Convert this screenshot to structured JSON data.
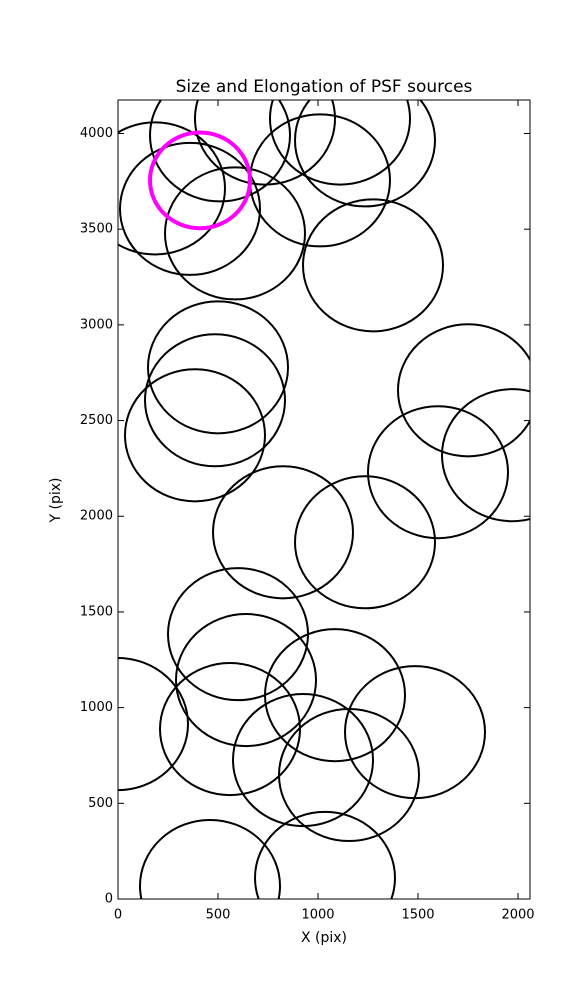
{
  "chart_data": {
    "type": "ellipse",
    "title": "Size and Elongation of PSF sources",
    "x_label": "X (pix)",
    "y_label": "Y (pix)",
    "xlim": [
      0,
      2060
    ],
    "ylim": [
      0,
      4175
    ],
    "xticks": [
      0,
      500,
      1000,
      1500,
      2000
    ],
    "yticks": [
      0,
      500,
      1000,
      1500,
      2000,
      2500,
      3000,
      3500,
      4000
    ],
    "series": [
      {
        "color": "#000000",
        "x": [
          185,
          360,
          585,
          510,
          735,
          1010,
          1235,
          1110,
          1275,
          500,
          485,
          385,
          1750,
          1600,
          1970,
          825,
          1235,
          600,
          640,
          1085,
          560,
          0,
          925,
          1485,
          1155,
          460,
          1035
        ],
        "y": [
          3713,
          3606,
          3478,
          3990,
          4078,
          3755,
          3964,
          4078,
          3311,
          2778,
          2606,
          2423,
          2658,
          2230,
          2319,
          1916,
          1864,
          1384,
          1144,
          1065,
          888,
          914,
          726,
          872,
          648,
          68,
          110
        ],
        "width": [
          700,
          700,
          700,
          700,
          700,
          700,
          700,
          700,
          700,
          700,
          700,
          700,
          700,
          700,
          700,
          700,
          700,
          700,
          700,
          700,
          700,
          700,
          700,
          700,
          700,
          700,
          700
        ],
        "height": [
          690,
          690,
          690,
          690,
          690,
          690,
          690,
          690,
          690,
          690,
          690,
          690,
          690,
          690,
          690,
          690,
          690,
          690,
          690,
          690,
          690,
          690,
          690,
          690,
          690,
          690,
          690
        ]
      },
      {
        "color": "#ff00ff",
        "x": [
          410
        ],
        "y": [
          3755
        ],
        "width": [
          500
        ],
        "height": [
          500
        ]
      }
    ]
  }
}
